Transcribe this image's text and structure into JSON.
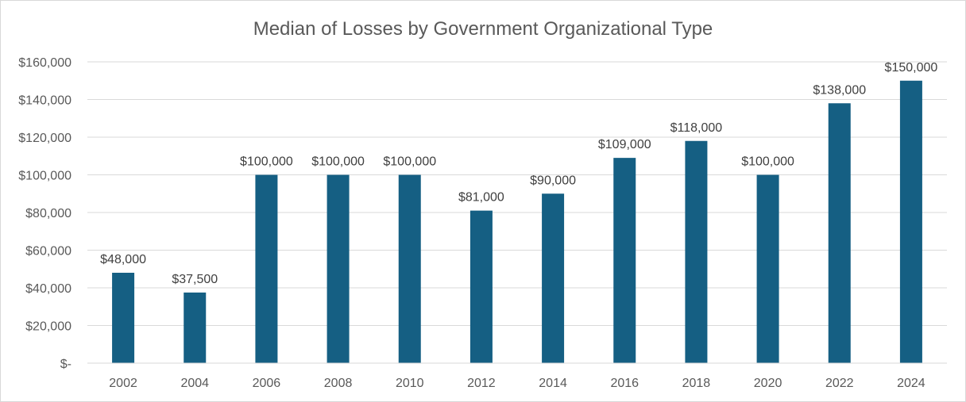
{
  "chart_data": {
    "type": "bar",
    "title": "Median of Losses by Government Organizational Type",
    "xlabel": "",
    "ylabel": "",
    "categories": [
      "2002",
      "2004",
      "2006",
      "2008",
      "2010",
      "2012",
      "2014",
      "2016",
      "2018",
      "2020",
      "2022",
      "2024"
    ],
    "values": [
      48000,
      37500,
      100000,
      100000,
      100000,
      81000,
      90000,
      109000,
      118000,
      100000,
      138000,
      150000
    ],
    "data_labels": [
      "$48,000",
      "$37,500",
      "$100,000",
      "$100,000",
      "$100,000",
      "$81,000",
      "$90,000",
      "$109,000",
      "$118,000",
      "$100,000",
      "$138,000",
      "$150,000"
    ],
    "ylim": [
      0,
      160000
    ],
    "yticks": [
      0,
      20000,
      40000,
      60000,
      80000,
      100000,
      120000,
      140000,
      160000
    ],
    "ytick_labels": [
      "$-",
      "$20,000",
      "$40,000",
      "$60,000",
      "$80,000",
      "$100,000",
      "$120,000",
      "$140,000",
      "$160,000"
    ],
    "grid": true,
    "legend": "none",
    "bar_color": "#155F83"
  }
}
